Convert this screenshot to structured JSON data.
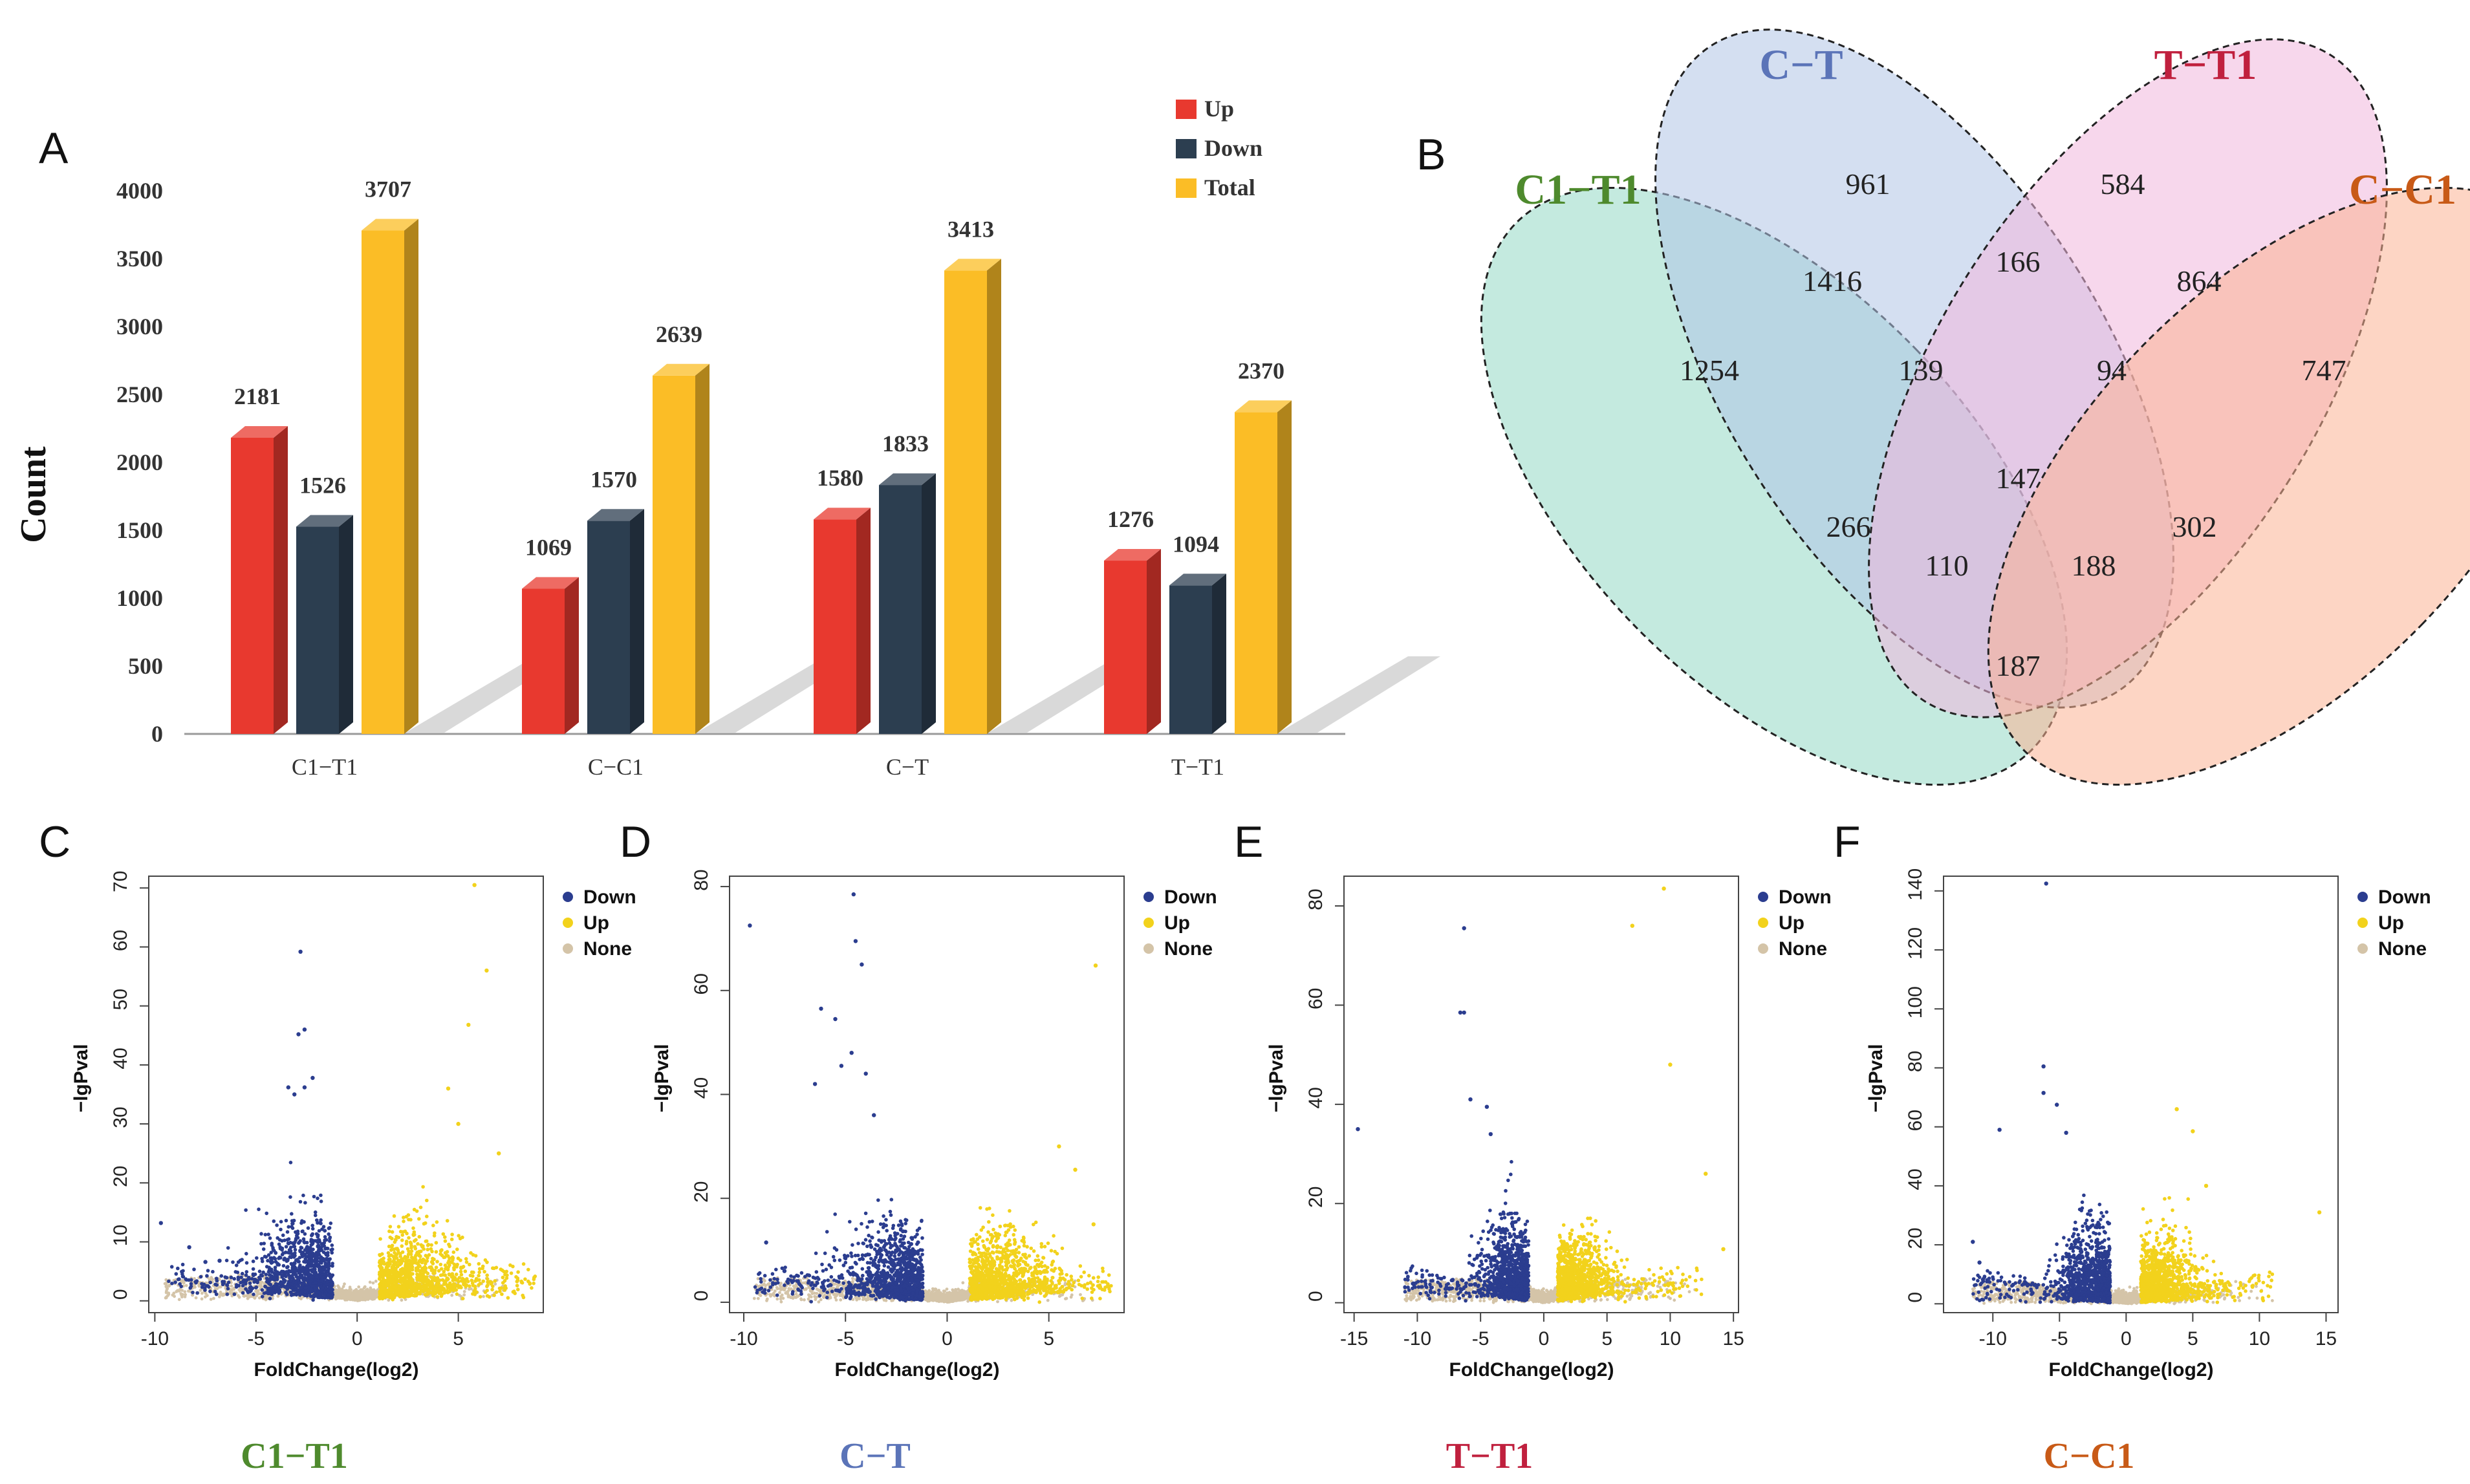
{
  "panel_letters": {
    "a": "A",
    "b": "B",
    "c": "C",
    "d": "D",
    "e": "E",
    "f": "F"
  },
  "colors": {
    "up_bar": "#e8392f",
    "down_bar": "#2c3e50",
    "total_bar": "#fbbd26",
    "volcano_down": "#2b3d8f",
    "volcano_up": "#f2d21c",
    "volcano_none": "#d4c4a8",
    "set_c1_t1": "#93d8c5",
    "set_c_t": "#b1c4e6",
    "set_t_t1": "#f0b6dc",
    "set_c_c1": "#fbb393",
    "label_c1_t1": "#4e8a2d",
    "label_c_t": "#5b74b8",
    "label_t_t1": "#c0203e",
    "label_c_c1": "#c85a17"
  },
  "chart_data": [
    {
      "type": "bar",
      "panel": "A",
      "title": "",
      "xlabel": "",
      "ylabel": "Count",
      "ylim": [
        0,
        4000
      ],
      "yticks": [
        "0",
        "500",
        "1000",
        "1500",
        "2000",
        "2500",
        "3000",
        "3500",
        "4000"
      ],
      "categories": [
        "C1−T1",
        "C−C1",
        "C−T",
        "T−T1"
      ],
      "series": [
        {
          "name": "Up",
          "values": [
            2181,
            1069,
            1580,
            1276
          ]
        },
        {
          "name": "Down",
          "values": [
            1526,
            1570,
            1833,
            1094
          ]
        },
        {
          "name": "Total",
          "values": [
            3707,
            2639,
            3413,
            2370
          ]
        }
      ],
      "legend": "top-right"
    },
    {
      "type": "venn",
      "panel": "B",
      "sets": [
        "C1−T1",
        "C−T",
        "T−T1",
        "C−C1"
      ],
      "regions": [
        {
          "sets": [
            "C1−T1"
          ],
          "value": "1254"
        },
        {
          "sets": [
            "C−T"
          ],
          "value": "961"
        },
        {
          "sets": [
            "T−T1"
          ],
          "value": "584"
        },
        {
          "sets": [
            "C−C1"
          ],
          "value": "747"
        },
        {
          "sets": [
            "C1−T1",
            "C−T"
          ],
          "value": "1416"
        },
        {
          "sets": [
            "C−T",
            "T−T1"
          ],
          "value": "166"
        },
        {
          "sets": [
            "T−T1",
            "C−C1"
          ],
          "value": "864"
        },
        {
          "sets": [
            "C1−T1",
            "C−T",
            "T−T1"
          ],
          "value": "139"
        },
        {
          "sets": [
            "C−T",
            "T−T1",
            "C−C1"
          ],
          "value": "94"
        },
        {
          "sets": [
            "C1−T1",
            "C−T",
            "T−T1",
            "C−C1"
          ],
          "value": "147"
        },
        {
          "sets": [
            "C1−T1",
            "T−T1"
          ],
          "value": "266"
        },
        {
          "sets": [
            "C−T",
            "C−C1"
          ],
          "value": "302"
        },
        {
          "sets": [
            "C1−T1",
            "T−T1",
            "C−C1"
          ],
          "value": "110"
        },
        {
          "sets": [
            "C1−T1",
            "C−T",
            "C−C1"
          ],
          "value": "188"
        },
        {
          "sets": [
            "C1−T1",
            "C−C1"
          ],
          "value": "187"
        }
      ]
    },
    {
      "type": "scatter",
      "panel": "C",
      "caption": "C1−T1",
      "xlabel": "FoldChange(log2)",
      "ylabel": "−lgPval",
      "xlim": [
        -10.3,
        9.2
      ],
      "ylim": [
        -2,
        72
      ],
      "xticks": [
        "-10",
        "-5",
        "0",
        "5"
      ],
      "xtick_values": [
        -10,
        -5,
        0,
        5
      ],
      "yticks": [
        "0",
        "10",
        "20",
        "30",
        "40",
        "50",
        "60",
        "70"
      ],
      "ytick_values": [
        0,
        10,
        20,
        30,
        40,
        50,
        60,
        70
      ],
      "legend": [
        "Down",
        "Up",
        "None"
      ],
      "legend_position": "top-right",
      "down_fc_max": -1.2,
      "up_fc_min": 1.1,
      "cloud_extent": [
        -9.5,
        9.0
      ],
      "point_density": 1.0,
      "highlight_points": {
        "down": [
          [
            -9.7,
            13.2
          ],
          [
            -8.3,
            9.1
          ],
          [
            -7.5,
            6.6
          ],
          [
            -6.8,
            6.8
          ],
          [
            -3.4,
            36.2
          ],
          [
            -3.1,
            35.0
          ],
          [
            -2.6,
            36.2
          ],
          [
            -2.9,
            45.2
          ],
          [
            -2.6,
            46.0
          ],
          [
            -2.8,
            59.2
          ],
          [
            -2.2,
            37.8
          ]
        ],
        "up": [
          [
            4.5,
            36.0
          ],
          [
            5.8,
            70.5
          ],
          [
            5.5,
            46.8
          ],
          [
            6.4,
            56.0
          ],
          [
            5.0,
            30.0
          ],
          [
            7.0,
            25.0
          ]
        ]
      }
    },
    {
      "type": "scatter",
      "panel": "D",
      "caption": "C−T",
      "xlabel": "FoldChange(log2)",
      "ylabel": "−lgPval",
      "xlim": [
        -10.7,
        8.7
      ],
      "ylim": [
        -2,
        82
      ],
      "xticks": [
        "-10",
        "-5",
        "0",
        "5"
      ],
      "xtick_values": [
        -10,
        -5,
        0,
        5
      ],
      "yticks": [
        "0",
        "20",
        "40",
        "60",
        "80"
      ],
      "ytick_values": [
        0,
        20,
        40,
        60,
        80
      ],
      "legend": [
        "Down",
        "Up",
        "None"
      ],
      "legend_position": "top-right",
      "down_fc_max": -1.2,
      "up_fc_min": 1.1,
      "cloud_extent": [
        -9.5,
        8.0
      ],
      "point_density": 1.0,
      "highlight_points": {
        "down": [
          [
            -9.7,
            72.5
          ],
          [
            -8.9,
            11.5
          ],
          [
            -4.6,
            78.5
          ],
          [
            -4.5,
            69.5
          ],
          [
            -4.2,
            65.0
          ],
          [
            -6.2,
            56.5
          ],
          [
            -5.5,
            54.5
          ],
          [
            -4.7,
            48.0
          ],
          [
            -5.2,
            45.5
          ],
          [
            -6.5,
            42.0
          ],
          [
            -4.0,
            44.0
          ],
          [
            -3.6,
            36.0
          ],
          [
            -8.0,
            6.0
          ]
        ],
        "up": [
          [
            7.3,
            64.8
          ],
          [
            5.5,
            30.0
          ],
          [
            6.3,
            25.5
          ],
          [
            7.2,
            15.0
          ]
        ]
      }
    },
    {
      "type": "scatter",
      "panel": "E",
      "caption": "T−T1",
      "xlabel": "FoldChange(log2)",
      "ylabel": "−lgPval",
      "xlim": [
        -15.8,
        15.4
      ],
      "ylim": [
        -2,
        86
      ],
      "xticks": [
        "-15",
        "-10",
        "-5",
        "0",
        "5",
        "10",
        "15"
      ],
      "xtick_values": [
        -15,
        -10,
        -5,
        0,
        5,
        10,
        15
      ],
      "yticks": [
        "0",
        "20",
        "40",
        "60",
        "80"
      ],
      "ytick_values": [
        0,
        20,
        40,
        60,
        80
      ],
      "legend": [
        "Down",
        "Up",
        "None"
      ],
      "legend_position": "top-right",
      "down_fc_max": -1.2,
      "up_fc_min": 1.1,
      "cloud_extent": [
        -11.0,
        12.5
      ],
      "point_density": 1.0,
      "highlight_points": {
        "down": [
          [
            -14.7,
            35.0
          ],
          [
            -6.3,
            75.5
          ],
          [
            -6.6,
            58.5
          ],
          [
            -6.3,
            58.5
          ],
          [
            -5.8,
            41.0
          ],
          [
            -4.5,
            39.5
          ],
          [
            -4.2,
            34.0
          ]
        ],
        "up": [
          [
            9.5,
            83.5
          ],
          [
            7.0,
            76.0
          ],
          [
            10.0,
            48.0
          ],
          [
            14.2,
            10.8
          ],
          [
            12.8,
            26.0
          ]
        ]
      }
    },
    {
      "type": "scatter",
      "panel": "F",
      "caption": "C−C1",
      "xlabel": "FoldChange(log2)",
      "ylabel": "−lgPval",
      "xlim": [
        -13.7,
        15.9
      ],
      "ylim": [
        -3,
        145
      ],
      "xticks": [
        "-10",
        "-5",
        "0",
        "5",
        "10",
        "15"
      ],
      "xtick_values": [
        -10,
        -5,
        0,
        5,
        10,
        15
      ],
      "yticks": [
        "0",
        "20",
        "40",
        "60",
        "80",
        "100",
        "120",
        "140"
      ],
      "ytick_values": [
        0,
        20,
        40,
        60,
        80,
        100,
        120,
        140
      ],
      "legend": [
        "Down",
        "Up",
        "None"
      ],
      "legend_position": "top-right",
      "down_fc_max": -1.2,
      "up_fc_min": 1.1,
      "cloud_extent": [
        -11.5,
        11.0
      ],
      "point_density": 1.0,
      "highlight_points": {
        "down": [
          [
            -6.0,
            142.5
          ],
          [
            -6.2,
            80.5
          ],
          [
            -6.2,
            71.5
          ],
          [
            -5.2,
            67.5
          ],
          [
            -4.5,
            58.0
          ],
          [
            -9.5,
            59.0
          ],
          [
            -11.5,
            21.0
          ],
          [
            -11.0,
            14.0
          ]
        ],
        "up": [
          [
            3.8,
            66.0
          ],
          [
            5.0,
            58.5
          ],
          [
            14.5,
            31.0
          ],
          [
            6.0,
            40.0
          ]
        ]
      }
    }
  ]
}
